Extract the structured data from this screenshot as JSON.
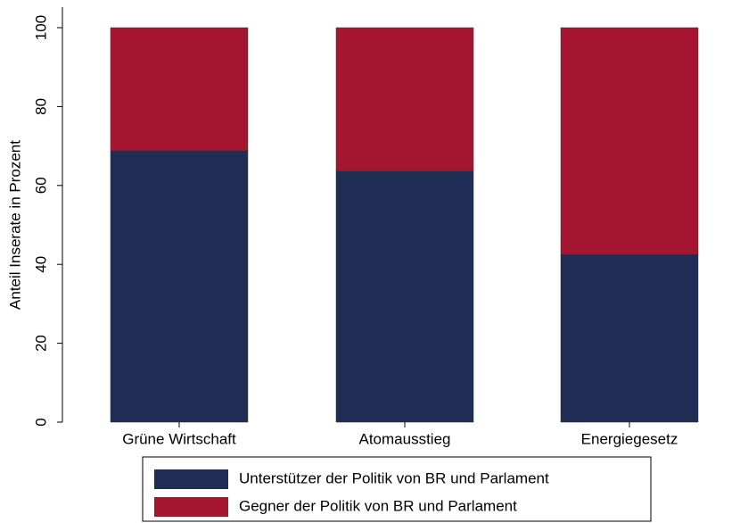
{
  "chart_data": {
    "type": "stacked_bar",
    "ylabel": "Anteil Inserate in Prozent",
    "categories": [
      "Grüne Wirtschaft",
      "Atomausstieg",
      "Energiegesetz"
    ],
    "series": [
      {
        "name": "Unterstützer der Politik von BR und Parlament",
        "color": "#1f2d54",
        "values": [
          68.8,
          63.6,
          42.5
        ]
      },
      {
        "name": "Gegner der Politik von BR und Parlament",
        "color": "#a5152f",
        "values": [
          31.2,
          36.4,
          57.5
        ]
      }
    ],
    "ylim": [
      0,
      100
    ],
    "yticks": [
      0,
      20,
      40,
      60,
      80,
      100
    ],
    "grid": false
  }
}
